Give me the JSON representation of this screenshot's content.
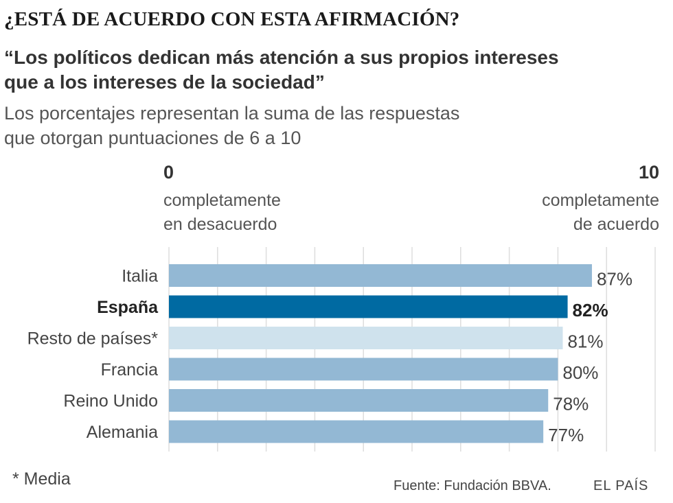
{
  "header": {
    "kicker": "¿ESTÁ DE ACUERDO CON ESTA AFIRMACIÓN?",
    "title_line1": "“Los políticos dedican más atención a sus propios intereses",
    "title_line2": "que a los intereses de la sociedad”",
    "subtitle_line1": "Los porcentajes representan la suma de las respuestas",
    "subtitle_line2": "que otorgan puntuaciones de 6 a 10"
  },
  "scale": {
    "min_value": "0",
    "min_label_line1": "completamente",
    "min_label_line2": "en desacuerdo",
    "max_value": "10",
    "max_label_line1": "completamente",
    "max_label_line2": "de acuerdo"
  },
  "chart_data": {
    "type": "bar",
    "orientation": "horizontal",
    "categories": [
      "Italia",
      "España",
      "Resto de países*",
      "Francia",
      "Reino Unido",
      "Alemania"
    ],
    "values": [
      87,
      82,
      81,
      80,
      78,
      77
    ],
    "value_labels": [
      "87%",
      "82%",
      "81%",
      "80%",
      "78%",
      "77%"
    ],
    "highlight": "España",
    "xlim": [
      0,
      100
    ],
    "grid": true,
    "colors": {
      "default": "#93b8d4",
      "highlight": "#006aa2",
      "average": "#cfe2ed",
      "grid": "#dddddd"
    },
    "bar_styles": [
      "default",
      "highlight",
      "average",
      "default",
      "default",
      "default"
    ]
  },
  "footer": {
    "note": "* Media",
    "source": "Fuente: Fundación BBVA.",
    "brand": "EL PAÍS"
  }
}
